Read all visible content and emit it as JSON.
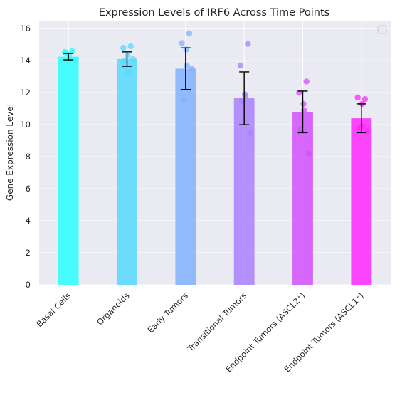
{
  "chart_data": {
    "type": "bar",
    "title": "Expression Levels of IRF6 Across Time Points",
    "xlabel": "",
    "ylabel": "Gene Expression Level",
    "ylim": [
      0,
      16.5
    ],
    "yticks": [
      0,
      2,
      4,
      6,
      8,
      10,
      12,
      14,
      16
    ],
    "grid": true,
    "legend": "top-right (empty)",
    "background": "#eaeaf2",
    "categories": [
      "Basal Cells",
      "Organoids",
      "Early Tumors",
      "Transitional Tumors",
      "Endpoint Tumors (ASCL2⁺)",
      "Endpoint Tumors (ASCL1⁺)"
    ],
    "values": [
      14.25,
      14.1,
      13.5,
      11.65,
      10.8,
      10.4
    ],
    "error": [
      0.2,
      0.45,
      1.3,
      1.65,
      1.3,
      0.9
    ],
    "colors": [
      "#2bfefe",
      "#55d9fe",
      "#80b1fe",
      "#aa80fe",
      "#d44ffe",
      "#fe27fe"
    ],
    "points": [
      [
        14.6,
        14.55,
        14.35,
        14.1,
        14.5,
        14.05
      ],
      [
        14.9,
        14.8,
        14.3,
        13.3,
        14.0,
        14.1
      ],
      [
        15.7,
        15.1,
        14.7,
        13.7,
        11.5,
        13.5
      ],
      [
        15.05,
        13.7,
        11.9,
        11.8,
        11.5,
        9.5
      ],
      [
        12.7,
        12.0,
        11.3,
        10.9,
        9.7,
        8.2
      ],
      [
        11.6,
        11.7,
        11.3,
        9.9,
        9.8,
        9.6
      ]
    ]
  }
}
